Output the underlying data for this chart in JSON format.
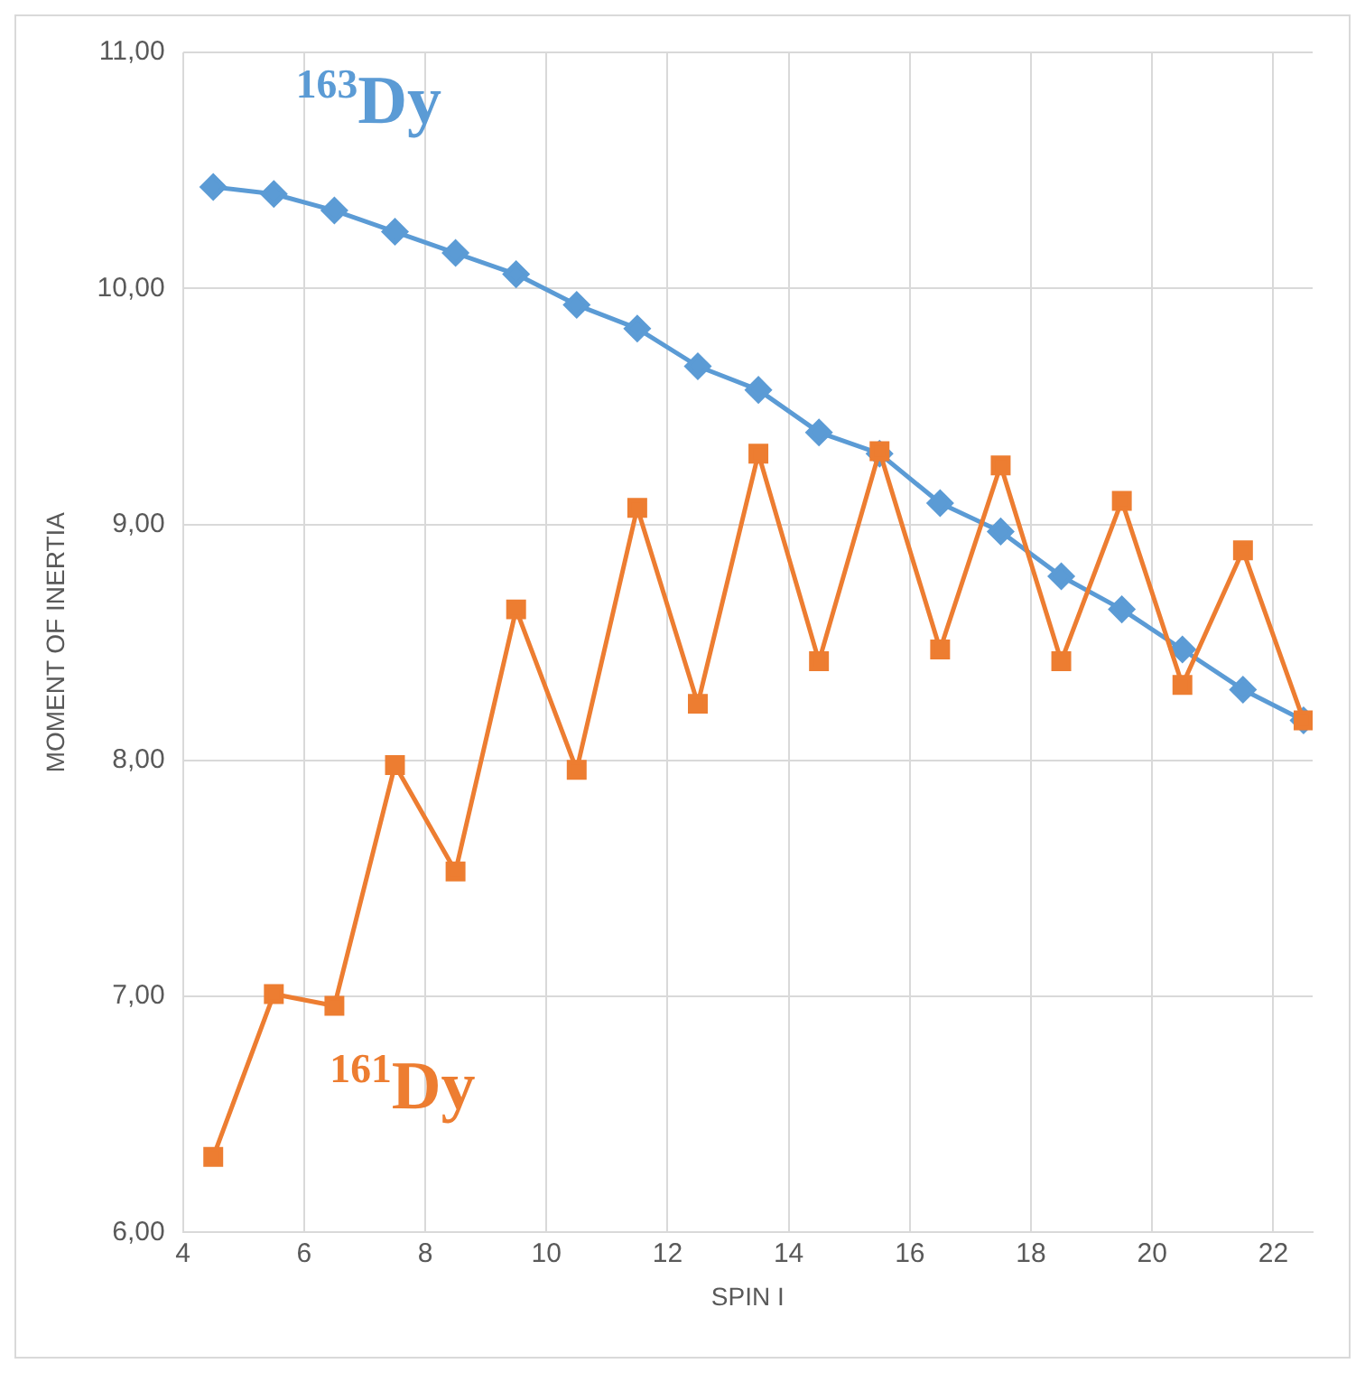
{
  "chart_data": {
    "type": "line",
    "xlabel": "SPIN I",
    "ylabel": "MOMENT OF INERTIA",
    "x": [
      4.5,
      5.5,
      6.5,
      7.5,
      8.5,
      9.5,
      10.5,
      11.5,
      12.5,
      13.5,
      14.5,
      15.5,
      16.5,
      17.5,
      18.5,
      19.5,
      20.5,
      21.5,
      22.5
    ],
    "series": [
      {
        "name": "$^{163}$Dy",
        "color": "#5b9bd5",
        "marker": "diamond",
        "values": [
          10.43,
          10.4,
          10.33,
          10.24,
          10.15,
          10.06,
          9.93,
          9.83,
          9.67,
          9.57,
          9.39,
          9.3,
          9.09,
          8.97,
          8.78,
          8.64,
          8.47,
          8.3,
          8.17
        ]
      },
      {
        "name": "$^{161}$Dy",
        "color": "#ed7d31",
        "marker": "square",
        "values": [
          6.32,
          7.01,
          6.96,
          7.98,
          7.53,
          8.64,
          7.96,
          9.07,
          8.24,
          9.3,
          8.42,
          9.31,
          8.47,
          9.25,
          8.42,
          9.1,
          8.32,
          8.89,
          8.17
        ]
      }
    ],
    "xlim": [
      4,
      22.65
    ],
    "xticks": [
      4,
      6,
      8,
      10,
      12,
      14,
      16,
      18,
      20,
      22
    ],
    "ylim": [
      6,
      11
    ],
    "yticks": [
      {
        "value": 6,
        "label": "6,00"
      },
      {
        "value": 7,
        "label": "7,00"
      },
      {
        "value": 8,
        "label": "8,00"
      },
      {
        "value": 9,
        "label": "9,00"
      },
      {
        "value": 10,
        "label": "10,00"
      },
      {
        "value": 11,
        "label": "11,00"
      }
    ],
    "grid": true,
    "legend": false,
    "line_style": "solid"
  }
}
